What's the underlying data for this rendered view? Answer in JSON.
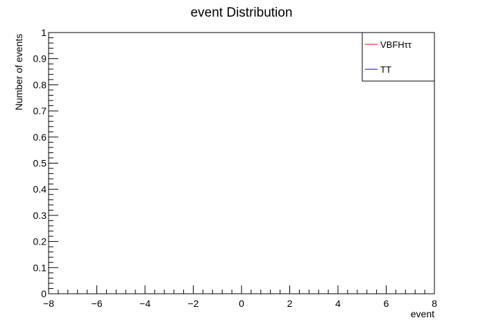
{
  "chart_data": {
    "type": "line",
    "title": "event Distribution",
    "xlabel": "event",
    "ylabel": "Number of events",
    "xlim": [
      -8,
      8
    ],
    "ylim": [
      0,
      1
    ],
    "x_ticks": [
      -8,
      -6,
      -4,
      -2,
      0,
      2,
      4,
      6,
      8
    ],
    "x_tick_labels": [
      "−8",
      "−6",
      "−4",
      "−2",
      "0",
      "2",
      "4",
      "6",
      "8"
    ],
    "y_ticks": [
      0,
      0.1,
      0.2,
      0.3,
      0.4,
      0.5,
      0.6,
      0.7,
      0.8,
      0.9,
      1
    ],
    "y_tick_labels": [
      "0",
      "0.1",
      "0.2",
      "0.3",
      "0.4",
      "0.5",
      "0.6",
      "0.7",
      "0.8",
      "0.9",
      "1"
    ],
    "grid": false,
    "legend_position": "top-right",
    "series": [
      {
        "name": "VBFHττ",
        "color": "#ff0000",
        "x": [
          -8,
          8
        ],
        "y": [
          0,
          0
        ]
      },
      {
        "name": "TT",
        "color": "#0000ff",
        "x": [
          -8,
          8
        ],
        "y": [
          0,
          0
        ]
      }
    ]
  }
}
